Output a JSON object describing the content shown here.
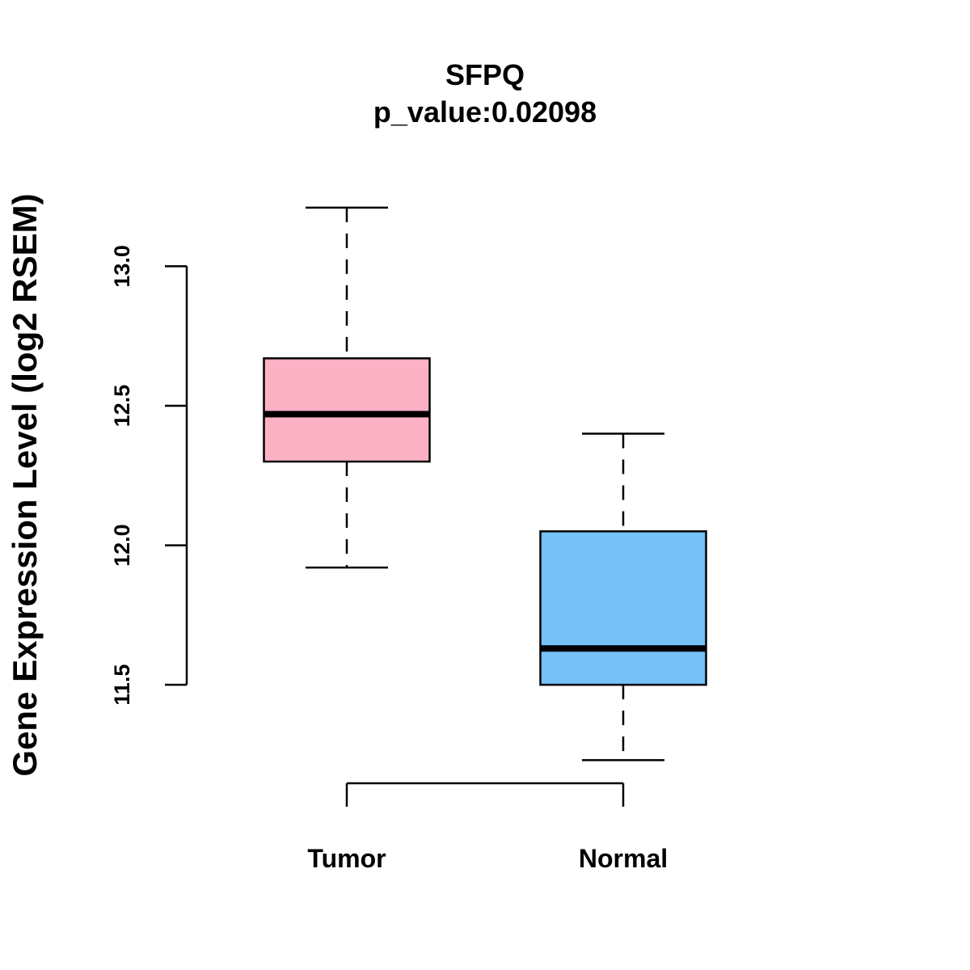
{
  "chart_data": {
    "type": "boxplot",
    "title": "SFPQ",
    "subtitle": "p_value:0.02098",
    "xlabel": "",
    "ylabel": "Gene Expression Level (log2 RSEM)",
    "ylim": [
      11.147,
      13.288
    ],
    "yticks": [
      11.5,
      12.0,
      12.5,
      13.0
    ],
    "ytick_labels": [
      "11.5",
      "12.0",
      "12.5",
      "13.0"
    ],
    "grid": false,
    "categories": [
      "Tumor",
      "Normal"
    ],
    "boxes": [
      {
        "name": "Tumor",
        "whisker_low": 11.92,
        "q1": 12.3,
        "median": 12.47,
        "q3": 12.67,
        "whisker_high": 13.21,
        "color": "#FDB1C4"
      },
      {
        "name": "Normal",
        "whisker_low": 11.23,
        "q1": 11.5,
        "median": 11.63,
        "q3": 12.05,
        "whisker_high": 12.4,
        "color": "#76C1F8"
      }
    ]
  }
}
